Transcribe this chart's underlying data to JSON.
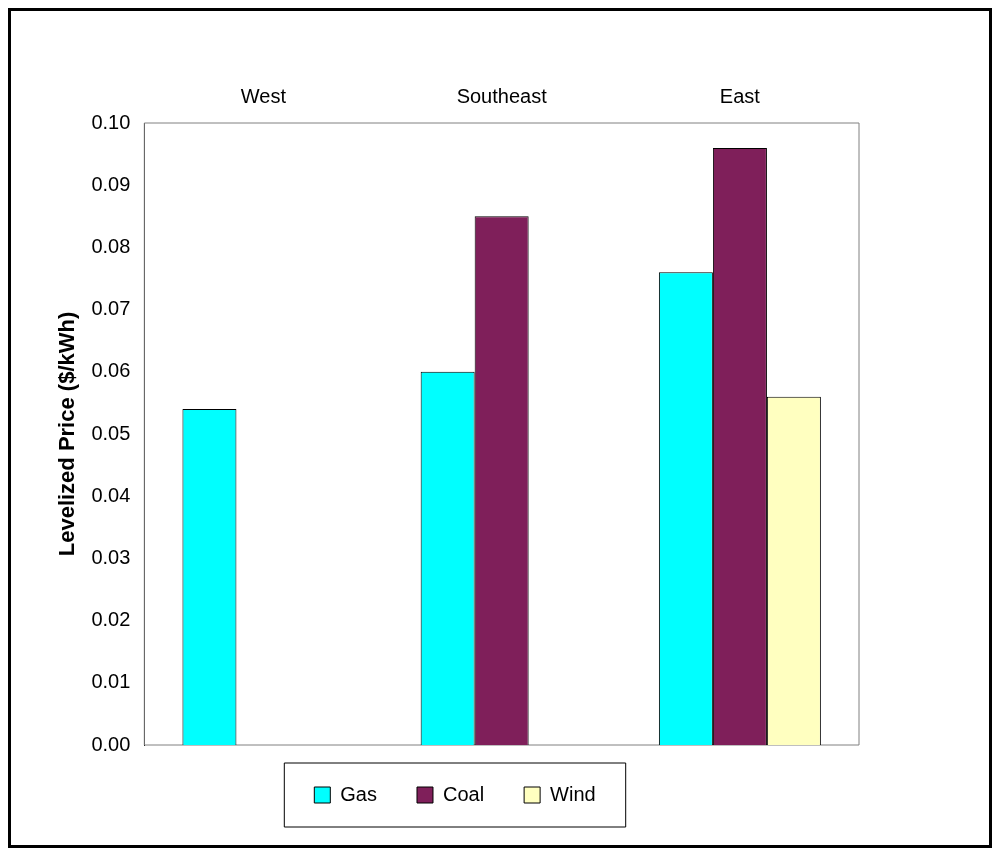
{
  "chart_data": {
    "type": "bar",
    "ylabel": "Levelized Price ($/kWh)",
    "categories": [
      "West",
      "Southeast",
      "East"
    ],
    "series": [
      {
        "name": "Gas",
        "color": "#00ffff",
        "values": [
          0.054,
          0.06,
          0.076
        ]
      },
      {
        "name": "Coal",
        "color": "#7f1f5a",
        "values": [
          null,
          0.085,
          0.096
        ]
      },
      {
        "name": "Wind",
        "color": "#ffffc0",
        "values": [
          null,
          null,
          0.056
        ]
      }
    ],
    "ylim": [
      0,
      0.1
    ],
    "yticks": [
      {
        "value": 0,
        "label": "0.00"
      },
      {
        "value": 0.01,
        "label": "0.01"
      },
      {
        "value": 0.02,
        "label": "0.02"
      },
      {
        "value": 0.03,
        "label": "0.03"
      },
      {
        "value": 0.04,
        "label": "0.04"
      },
      {
        "value": 0.05,
        "label": "0.05"
      },
      {
        "value": 0.06,
        "label": "0.06"
      },
      {
        "value": 0.07,
        "label": "0.07"
      },
      {
        "value": 0.08,
        "label": "0.08"
      },
      {
        "value": 0.09,
        "label": "0.09"
      },
      {
        "value": 0.1,
        "label": "0.10"
      }
    ],
    "grid": false,
    "legend": "bottom"
  }
}
